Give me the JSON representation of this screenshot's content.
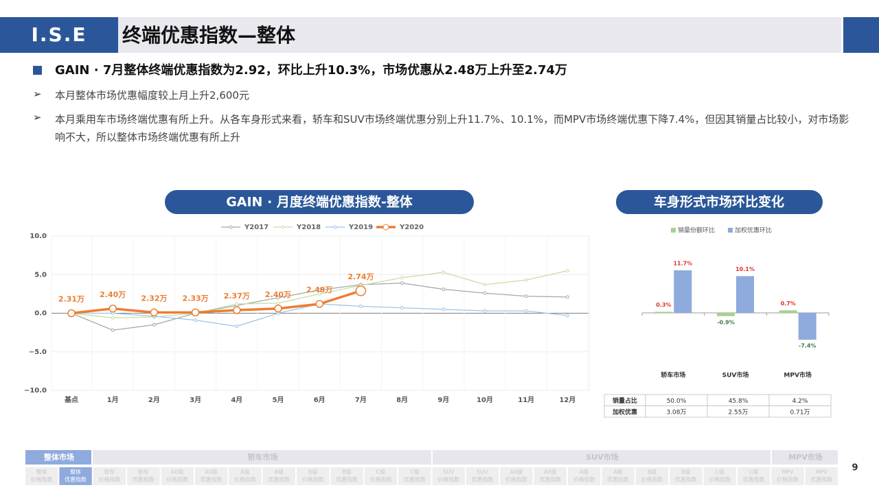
{
  "header": {
    "logo": "I.S.E",
    "title": "终端优惠指数—整体"
  },
  "bullets": {
    "main": "GAIN · 7月整体终端优惠指数为2.92，环比上升10.3%，市场优惠从2.48万上升至2.74万",
    "items": [
      "本月整体市场优惠幅度较上月上升2,600元",
      "本月乘用车市场终端优惠有所上升。从各车身形式来看，轿车和SUV市场终端优惠分别上升11.7%、10.1%，而MPV市场终端优惠下降7.4%，但因其销量占比较小，对市场影响不大，所以整体市场终端优惠有所上升"
    ]
  },
  "chart_data": [
    {
      "type": "line",
      "title": "GAIN · 月度终端优惠指数-整体",
      "categories": [
        "基点",
        "1月",
        "2月",
        "3月",
        "4月",
        "5月",
        "6月",
        "7月",
        "8月",
        "9月",
        "10月",
        "11月",
        "12月"
      ],
      "series": [
        {
          "name": "Y2017",
          "color": "#a6a6a6",
          "values": [
            0,
            -2.2,
            -1.5,
            0,
            1.0,
            2.0,
            3.0,
            3.7,
            3.9,
            3.1,
            2.6,
            2.2,
            2.1
          ]
        },
        {
          "name": "Y2018",
          "color": "#c5dea0",
          "values": [
            0,
            -0.6,
            -0.5,
            0,
            1.2,
            1.3,
            2.5,
            3.6,
            4.6,
            5.3,
            3.7,
            4.3,
            5.5
          ]
        },
        {
          "name": "Y2019",
          "color": "#9dc3e6",
          "values": [
            0,
            0,
            -0.4,
            -0.9,
            -1.7,
            0,
            1.2,
            0.9,
            0.7,
            0.5,
            0.3,
            0.3,
            -0.3
          ]
        },
        {
          "name": "Y2020",
          "color": "#ed7d31",
          "values": [
            0,
            0.6,
            0.1,
            0.1,
            0.4,
            0.6,
            1.2,
            2.9,
            null,
            null,
            null,
            null,
            null
          ]
        }
      ],
      "annotations": [
        "2.31万",
        "2.40万",
        "2.32万",
        "2.33万",
        "2.37万",
        "2.40万",
        "2.48万",
        "2.74万"
      ],
      "ylim": [
        -10,
        10
      ],
      "yticks": [
        {
          "value": -10,
          "label": "−10.0"
        },
        {
          "value": -5,
          "label": "−5.0"
        },
        {
          "value": 0,
          "label": "0.0"
        },
        {
          "value": 5,
          "label": "5.0"
        },
        {
          "value": 10,
          "label": "10.0"
        }
      ],
      "grid": true
    },
    {
      "type": "bar",
      "title": "车身形式市场环比变化",
      "categories": [
        "轿车市场",
        "SUV市场",
        "MPV市场"
      ],
      "series": [
        {
          "name": "销量份额环比",
          "color": "#a9d18e",
          "values": [
            0.3,
            -0.9,
            0.7
          ],
          "value_labels": [
            "0.3%",
            "-0.9%",
            "0.7%"
          ]
        },
        {
          "name": "加权优惠环比",
          "color": "#8faadc",
          "values": [
            11.7,
            10.1,
            -7.4
          ],
          "value_labels": [
            "11.7%",
            "10.1%",
            "-7.4%"
          ]
        }
      ]
    }
  ],
  "table": {
    "rows": [
      [
        "销量占比",
        "50.0%",
        "45.8%",
        "4.2%"
      ],
      [
        "加权优惠",
        "3.08万",
        "2.55万",
        "0.71万"
      ]
    ]
  },
  "nav": {
    "groups": [
      "整体市场",
      "轿车市场",
      "SUV市场",
      "MPV市场"
    ],
    "tabs": [
      [
        "整体",
        "价格指数"
      ],
      [
        "整体",
        "优惠指数"
      ],
      [
        "轿车",
        "价格指数"
      ],
      [
        "轿车",
        "优惠指数"
      ],
      [
        "A0级",
        "价格指数"
      ],
      [
        "A0级",
        "优惠指数"
      ],
      [
        "A级",
        "价格指数"
      ],
      [
        "A级",
        "优惠指数"
      ],
      [
        "B级",
        "价格指数"
      ],
      [
        "B级",
        "优惠指数"
      ],
      [
        "C级",
        "价格指数"
      ],
      [
        "C级",
        "优惠指数"
      ],
      [
        "SUV",
        "价格指数"
      ],
      [
        "SUV",
        "优惠指数"
      ],
      [
        "A0级",
        "价格指数"
      ],
      [
        "A0级",
        "优惠指数"
      ],
      [
        "A级",
        "价格指数"
      ],
      [
        "A级",
        "优惠指数"
      ],
      [
        "B级",
        "价格指数"
      ],
      [
        "B级",
        "优惠指数"
      ],
      [
        "C级",
        "价格指数"
      ],
      [
        "C级",
        "优惠指数"
      ],
      [
        "MPV",
        "价格指数"
      ],
      [
        "MPV",
        "优惠指数"
      ]
    ]
  },
  "page_number": "9"
}
